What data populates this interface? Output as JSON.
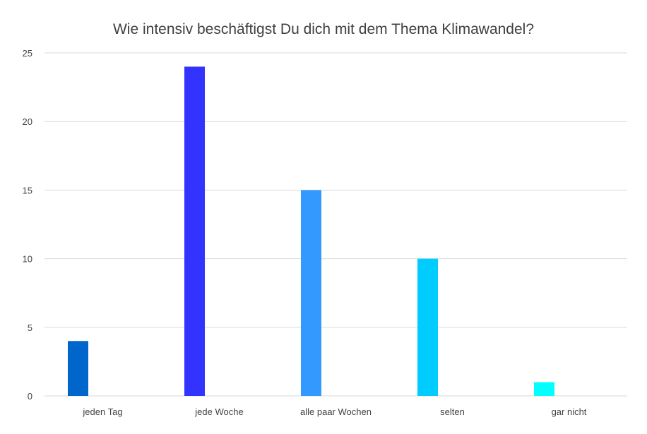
{
  "chart_data": {
    "type": "bar",
    "title": "Wie intensiv beschäftigst Du dich mit dem Thema Klimawandel?",
    "xlabel": "",
    "ylabel": "",
    "categories": [
      "jeden Tag",
      "jede Woche",
      "alle paar Wochen",
      "selten",
      "gar nicht"
    ],
    "values": [
      4,
      24,
      15,
      10,
      1
    ],
    "colors": [
      "#0066cc",
      "#3333ff",
      "#3399ff",
      "#00ccff",
      "#00ffff"
    ],
    "ylim": [
      0,
      25
    ],
    "yticks": [
      0,
      5,
      10,
      15,
      20,
      25
    ],
    "grid": true,
    "legend": "none"
  }
}
